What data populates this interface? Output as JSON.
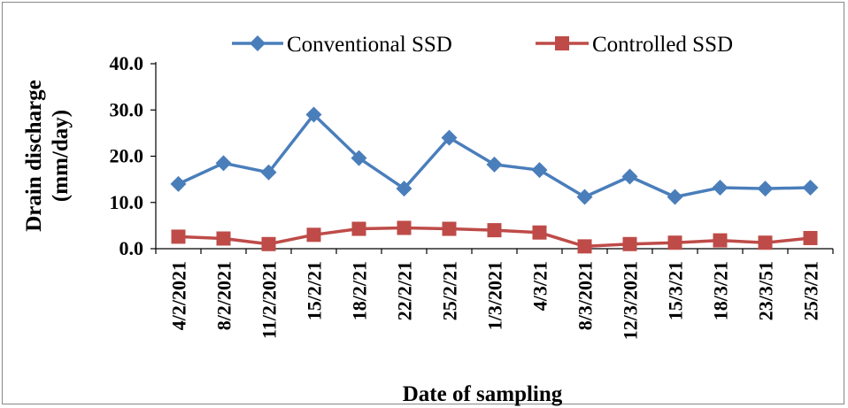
{
  "chart_data": {
    "type": "line",
    "categories": [
      "4/2/2021",
      "8/2/2021",
      "11/2/2021",
      "15/2/21",
      "18/2/21",
      "22/2/21",
      "25/2/21",
      "1/3/2021",
      "4/3/21",
      "8/3/2021",
      "12/3/2021",
      "15/3/21",
      "18/3/21",
      "23/3/51",
      "25/3/21"
    ],
    "series": [
      {
        "name": "Conventional SSD",
        "color": "#4a7ebb",
        "marker": "diamond",
        "values": [
          14.0,
          18.5,
          16.5,
          29.0,
          19.6,
          13.0,
          24.0,
          18.2,
          17.0,
          11.2,
          15.6,
          11.2,
          13.2,
          13.0,
          13.2
        ]
      },
      {
        "name": "Controlled SSD",
        "color": "#be4b48",
        "marker": "square",
        "values": [
          2.6,
          2.2,
          1.0,
          3.0,
          4.3,
          4.5,
          4.3,
          4.0,
          3.5,
          0.5,
          1.0,
          1.3,
          1.8,
          1.3,
          2.3
        ]
      }
    ],
    "title": "",
    "xlabel": "Date of sampling",
    "ylabel_line1": "Drain discharge",
    "ylabel_line2": "(mm/day)",
    "ylim": [
      0,
      40
    ],
    "yticks": [
      "0.0",
      "10.0",
      "20.0",
      "30.0",
      "40.0"
    ],
    "grid": false,
    "legend_position": "top"
  }
}
